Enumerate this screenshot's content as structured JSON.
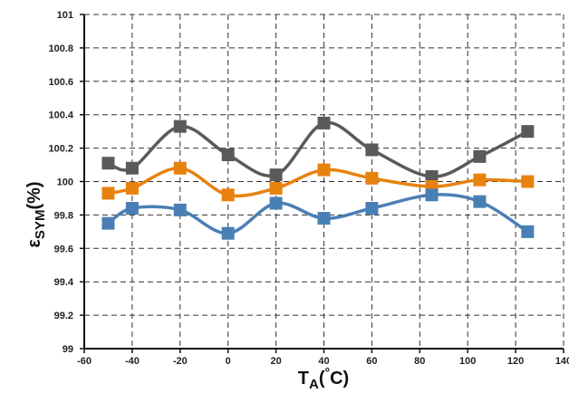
{
  "chart_data": {
    "type": "line",
    "xlabel": {
      "main": "T",
      "sub": "A",
      "unit_open": "(",
      "degree": "°",
      "unit_close": "C)"
    },
    "ylabel": {
      "main": "ε",
      "sub": "SYM",
      "unit": "(%)"
    },
    "xlim": [
      -60,
      140
    ],
    "ylim": [
      99,
      101
    ],
    "xticks": [
      -60,
      -40,
      -20,
      0,
      20,
      40,
      60,
      80,
      100,
      120,
      140
    ],
    "yticks": [
      99,
      99.2,
      99.4,
      99.6,
      99.8,
      100,
      100.2,
      100.4,
      100.6,
      100.8,
      101
    ],
    "grid": true,
    "x": [
      -50,
      -40,
      -20,
      0,
      20,
      40,
      60,
      85,
      105,
      125
    ],
    "series": [
      {
        "color": "#5a5a5a",
        "values": [
          100.11,
          100.08,
          100.33,
          100.16,
          100.04,
          100.35,
          100.19,
          100.03,
          100.15,
          100.3
        ]
      },
      {
        "color": "#e8820e",
        "values": [
          99.93,
          99.96,
          100.08,
          99.92,
          99.96,
          100.07,
          100.02,
          99.97,
          100.01,
          100.0
        ]
      },
      {
        "color": "#4a7fb5",
        "values": [
          99.75,
          99.84,
          99.83,
          99.69,
          99.87,
          99.78,
          99.84,
          99.92,
          99.88,
          99.7
        ]
      }
    ]
  }
}
